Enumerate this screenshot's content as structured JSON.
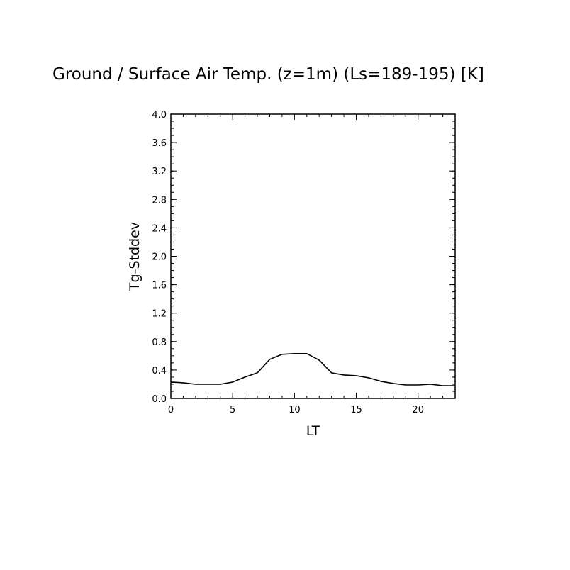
{
  "chart_data": {
    "type": "line",
    "title": "Ground / Surface Air Temp. (z=1m) (Ls=189-195) [K]",
    "xlabel": "LT",
    "ylabel": "Tg-Stddev",
    "xlim": [
      0,
      23
    ],
    "ylim": [
      0.0,
      4.0
    ],
    "x_ticks": [
      0,
      5,
      10,
      15,
      20
    ],
    "x_tick_labels": [
      "0",
      "5",
      "10",
      "15",
      "20"
    ],
    "y_ticks": [
      0.0,
      0.4,
      0.8,
      1.2,
      1.6,
      2.0,
      2.4,
      2.8,
      3.2,
      3.6,
      4.0
    ],
    "y_tick_labels": [
      "0.0",
      "0.4",
      "0.8",
      "1.2",
      "1.6",
      "2.0",
      "2.4",
      "2.8",
      "3.2",
      "3.6",
      "4.0"
    ],
    "x_minor_step": 1,
    "y_minor_step": 0.1,
    "grid": false,
    "legend": "none",
    "series": [
      {
        "x": [
          0,
          1,
          2,
          3,
          4,
          5,
          6,
          7,
          8,
          9,
          10,
          11,
          12,
          13,
          14,
          15,
          16,
          17,
          18,
          19,
          20,
          21,
          22,
          23
        ],
        "values": [
          0.23,
          0.22,
          0.2,
          0.2,
          0.2,
          0.23,
          0.3,
          0.36,
          0.55,
          0.62,
          0.63,
          0.63,
          0.54,
          0.36,
          0.33,
          0.32,
          0.29,
          0.24,
          0.21,
          0.19,
          0.19,
          0.2,
          0.18,
          0.18
        ],
        "color": "#000000"
      }
    ]
  }
}
